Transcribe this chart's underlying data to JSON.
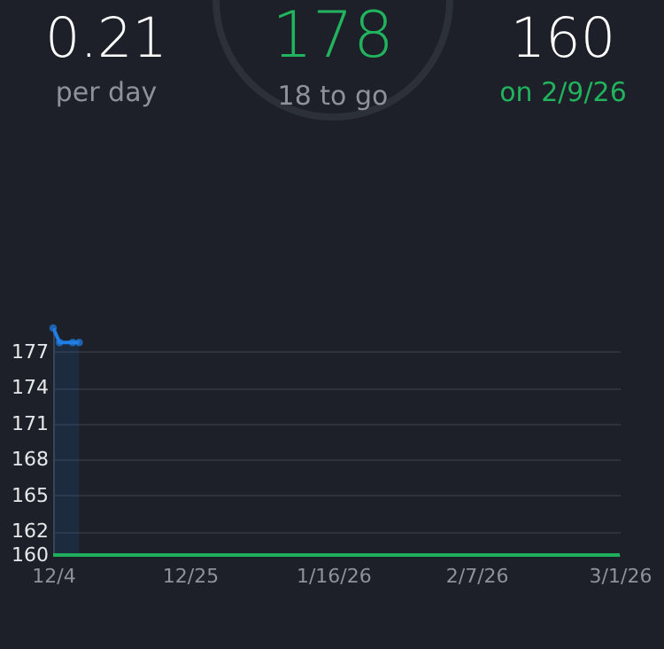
{
  "chart_data": {
    "type": "area",
    "x": [
      "2025-12-04",
      "2025-12-05",
      "2025-12-07",
      "2025-12-08"
    ],
    "series": [
      {
        "color": "#1f7fe5",
        "values": [
          179,
          177.8,
          177.8,
          177.8
        ]
      }
    ],
    "xlim": [
      "2025-12-04",
      "2026-03-01"
    ],
    "xticks": [
      {
        "value": "2025-12-04",
        "label": "12/4"
      },
      {
        "value": "2025-12-25",
        "label": "12/25"
      },
      {
        "value": "2026-01-16",
        "label": "1/16/26"
      },
      {
        "value": "2026-02-07",
        "label": "2/7/26"
      },
      {
        "value": "2026-03-01",
        "label": "3/1/26"
      }
    ],
    "ylim": [
      160,
      179
    ],
    "yticks": [
      160,
      162,
      165,
      168,
      171,
      174,
      177
    ],
    "grid": "y",
    "marker": "circle",
    "ref_lines": [
      {
        "axis": "y",
        "value": 160,
        "color": "#1fae5c"
      }
    ],
    "annotations": [
      "0.21",
      "per day",
      "178",
      "18 to go",
      "160",
      "on 2/9/26"
    ]
  }
}
